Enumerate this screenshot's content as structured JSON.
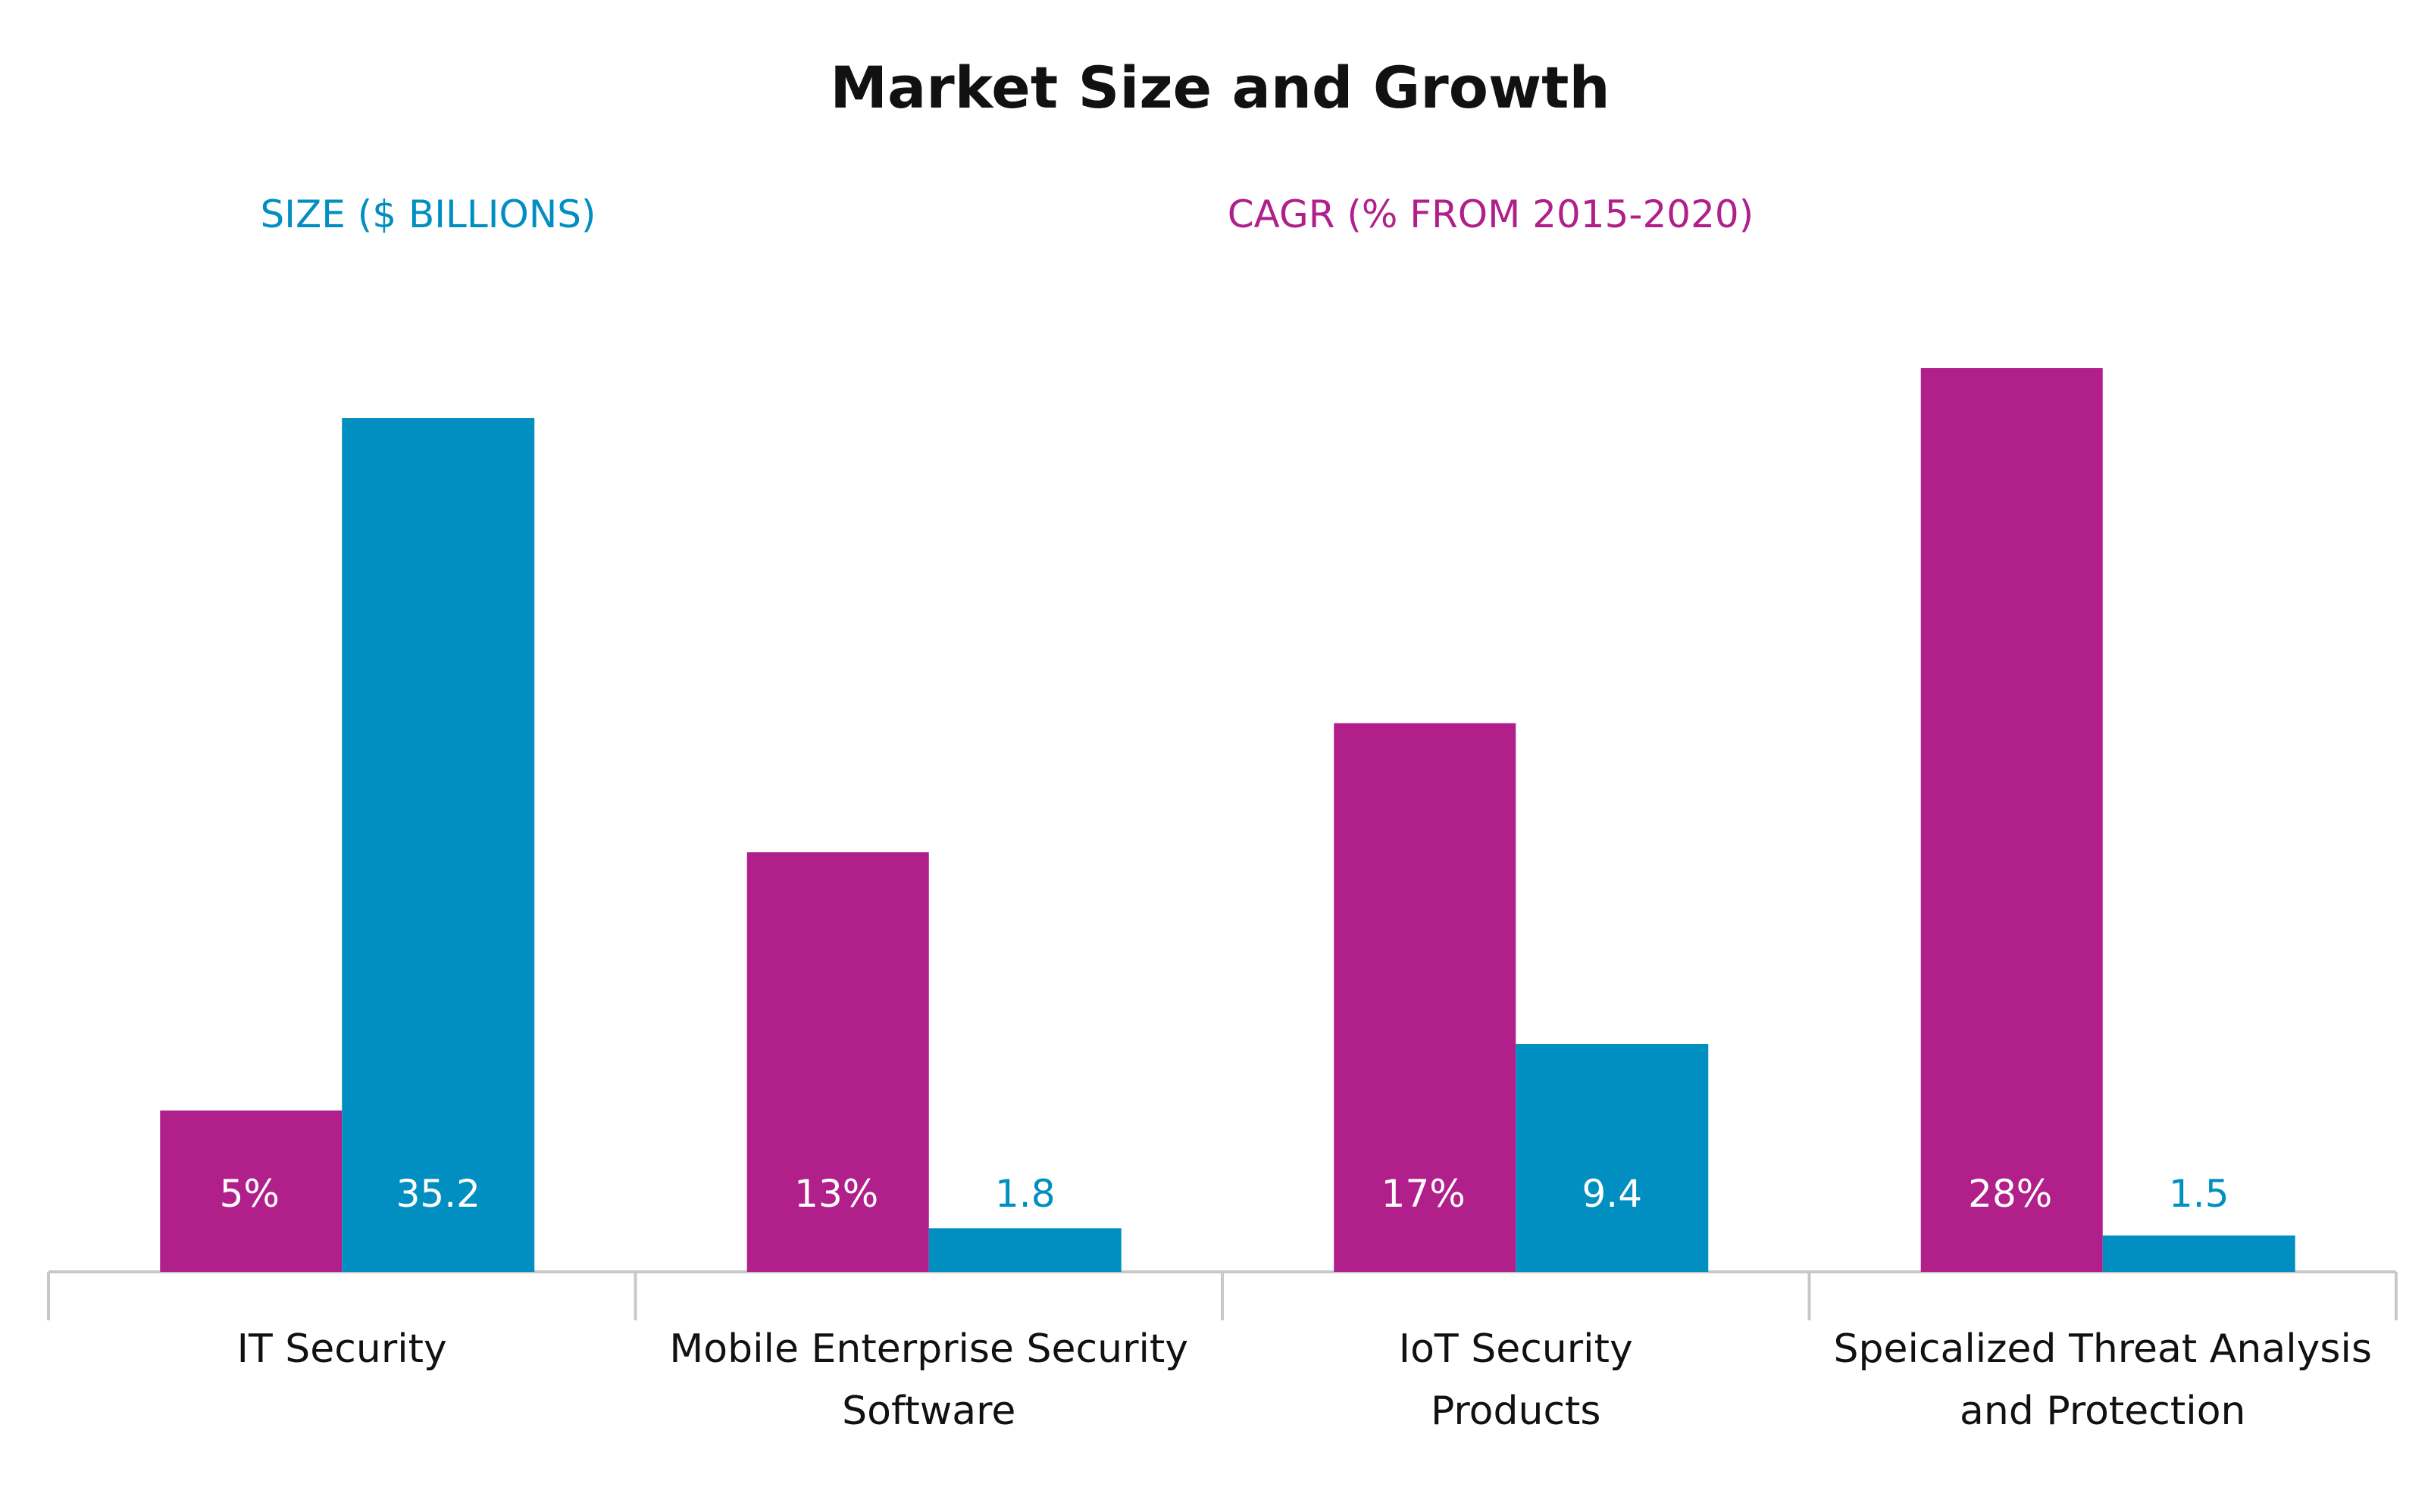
{
  "chart_data": {
    "type": "bar",
    "title": "Market Size and Growth",
    "categories": [
      "IT Security",
      "Mobile Enterprise Security Software",
      "IoT Security Products",
      "Speicalized Threat Analysis and Protection"
    ],
    "category_label_lines": [
      [
        "IT Security"
      ],
      [
        "Mobile Enterprise Security",
        "Software"
      ],
      [
        "IoT Security",
        "Products"
      ],
      [
        "Speicalized Threat Analysis",
        "and Protection"
      ]
    ],
    "series": [
      {
        "name": "CAGR (% FROM 2015-2020)",
        "values": [
          5,
          13,
          17,
          28
        ],
        "labels": [
          "5%",
          "13%",
          "17%",
          "28%"
        ],
        "color": "#b01f8a",
        "label_color": "#ffffff"
      },
      {
        "name": "SIZE ($ BILLIONS)",
        "values": [
          35.2,
          1.8,
          9.4,
          1.5
        ],
        "labels": [
          "35.2",
          "1.8",
          "9.4",
          "1.5"
        ],
        "color": "#008fc0",
        "label_color_inside": "#ffffff",
        "label_color_outside": "#008fc0"
      }
    ],
    "legend": {
      "position": "top",
      "items": [
        {
          "text": "SIZE ($ BILLIONS)",
          "color": "#008fc0"
        },
        {
          "text": "CAGR (% FROM 2015-2020)",
          "color": "#b01f8a"
        }
      ]
    },
    "grid": false,
    "axis_color": "#c8c8c8",
    "label_color": "#111111"
  }
}
